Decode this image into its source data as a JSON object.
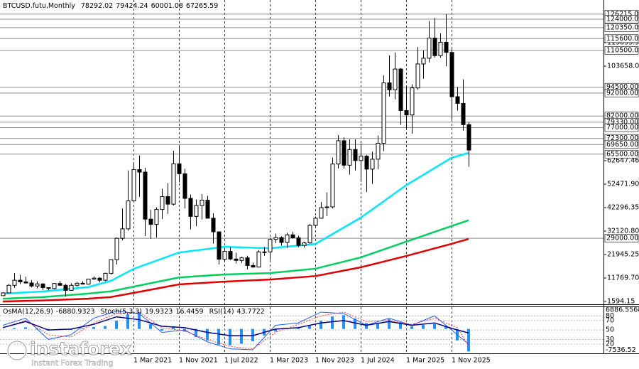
{
  "chart_data": {
    "type": "candlestick",
    "title": "BTCUSD.futu,Monthly",
    "x": [
      "2019-04",
      "2019-05",
      "2019-06",
      "2019-07",
      "2019-08",
      "2019-09",
      "2019-10",
      "2019-11",
      "2019-12",
      "2020-01",
      "2020-02",
      "2020-03",
      "2020-04",
      "2020-05",
      "2020-06",
      "2020-07",
      "2020-08",
      "2020-09",
      "2020-10",
      "2020-11",
      "2020-12",
      "2021-01",
      "2021-02",
      "2021-03",
      "2021-04",
      "2021-05",
      "2021-06",
      "2021-07",
      "2021-08",
      "2021-09",
      "2021-10",
      "2021-11",
      "2021-12",
      "2022-01",
      "2022-02",
      "2022-03",
      "2022-04",
      "2022-05",
      "2022-06",
      "2022-07",
      "2022-08",
      "2022-09",
      "2022-10",
      "2022-11",
      "2022-12",
      "2023-01",
      "2023-02",
      "2023-03",
      "2023-04",
      "2023-05",
      "2023-06",
      "2023-07",
      "2023-08",
      "2023-09",
      "2023-10",
      "2023-11",
      "2023-12",
      "2024-01",
      "2024-02",
      "2024-03",
      "2024-04",
      "2024-05",
      "2024-06",
      "2024-07",
      "2024-08",
      "2024-09",
      "2024-10",
      "2024-11",
      "2024-12",
      "2025-01",
      "2025-02",
      "2025-03",
      "2025-04",
      "2025-05",
      "2025-06",
      "2025-07",
      "2025-08",
      "2025-09",
      "2025-10",
      "2025-11",
      "2025-12",
      "2026-01",
      "2026-02"
    ],
    "open": [
      4100,
      5300,
      8600,
      10800,
      10100,
      9600,
      8300,
      9200,
      7600,
      7200,
      9400,
      8600,
      6400,
      8600,
      9500,
      9100,
      11300,
      11700,
      10800,
      13800,
      19700,
      29000,
      33100,
      45200,
      58800,
      57700,
      37300,
      35000,
      41500,
      47100,
      43800,
      61300,
      57000,
      46300,
      38500,
      43200,
      45500,
      37700,
      31800,
      19900,
      23300,
      20000,
      19400,
      20500,
      17200,
      16500,
      23100,
      23100,
      28500,
      29300,
      27200,
      30500,
      29200,
      25900,
      27000,
      34600,
      37700,
      42300,
      42600,
      61200,
      71300,
      60700,
      67500,
      62700,
      64600,
      59000,
      63300,
      70200,
      96400,
      93400,
      102400,
      84400,
      82500,
      94200,
      104600,
      107100,
      115800,
      108200,
      114000,
      109600,
      90400,
      87500,
      78292.02
    ],
    "high": [
      5600,
      9100,
      13900,
      13200,
      12300,
      10900,
      10400,
      9500,
      7700,
      9600,
      10500,
      9200,
      9500,
      10100,
      10400,
      11400,
      12500,
      12100,
      14100,
      19900,
      29300,
      41900,
      58400,
      61800,
      64900,
      59600,
      41300,
      42400,
      50500,
      52900,
      67000,
      69000,
      59100,
      48000,
      45800,
      48200,
      47400,
      39900,
      31900,
      24600,
      25200,
      22700,
      21000,
      21400,
      18400,
      23900,
      25200,
      29200,
      31000,
      29800,
      31400,
      31800,
      30100,
      27500,
      35200,
      38400,
      44700,
      48900,
      64000,
      73800,
      72700,
      71900,
      71900,
      70000,
      65100,
      66500,
      73600,
      99600,
      108300,
      109600,
      102800,
      95000,
      95800,
      111900,
      110500,
      123200,
      124500,
      117900,
      126200,
      111000,
      94600,
      97900,
      79424.24
    ],
    "low": [
      4000,
      5300,
      7500,
      9100,
      9400,
      7700,
      7300,
      6500,
      6400,
      6900,
      8500,
      3800,
      6200,
      8100,
      8900,
      8900,
      11000,
      9900,
      10400,
      13200,
      17600,
      28100,
      32300,
      45000,
      47000,
      30000,
      28800,
      29300,
      37300,
      39600,
      43300,
      53300,
      42000,
      32900,
      34300,
      37200,
      37700,
      26700,
      17600,
      18800,
      19600,
      18100,
      18200,
      15500,
      16300,
      16500,
      21400,
      19600,
      26900,
      25800,
      24800,
      28900,
      25200,
      24900,
      26600,
      34100,
      37600,
      38600,
      41900,
      59300,
      59200,
      56600,
      58400,
      53500,
      49100,
      52600,
      58900,
      66800,
      90500,
      89300,
      78200,
      76600,
      74400,
      93400,
      98200,
      105300,
      107400,
      107300,
      103600,
      80600,
      84400,
      75700,
      60001.08
    ],
    "close": [
      5300,
      8600,
      10800,
      10100,
      9600,
      8300,
      9200,
      7600,
      7200,
      9400,
      8600,
      6400,
      8600,
      9500,
      9100,
      11300,
      11700,
      10800,
      13800,
      19700,
      29000,
      33100,
      45200,
      58800,
      57700,
      37300,
      35000,
      41500,
      47100,
      43800,
      61300,
      57000,
      46300,
      38500,
      43200,
      45500,
      37700,
      31800,
      19900,
      23300,
      20000,
      19400,
      20500,
      17200,
      16500,
      23100,
      23100,
      28500,
      29300,
      27200,
      30500,
      29200,
      25900,
      27000,
      34600,
      37700,
      42300,
      42600,
      61200,
      71300,
      60700,
      67500,
      62700,
      64600,
      59000,
      63300,
      70200,
      96400,
      93400,
      102400,
      84400,
      82500,
      94200,
      104600,
      107100,
      115800,
      108200,
      114000,
      109600,
      90400,
      87500,
      78292.02,
      67265.59
    ],
    "up_color": "#ffffff",
    "down_color": "#000000",
    "ylim": [
      361,
      132340
    ],
    "yticks": [
      1594.15,
      {
        "value": 11769.7,
        "label": "11769.70"
      },
      21945.25,
      {
        "value": 32120.8,
        "label": "32120.80"
      },
      42296.35,
      {
        "value": 52471.9,
        "label": "52471.90"
      },
      62647.46,
      {
        "value": 103658,
        "label": "103658.00"
      },
      113833.33
    ],
    "levels": [
      {
        "value": 126215,
        "label": "126215.00"
      },
      {
        "value": 124000,
        "label": "124000.00"
      },
      {
        "value": 120350,
        "label": "120350.00"
      },
      {
        "value": 115600,
        "label": "115600.00"
      },
      {
        "value": 110500,
        "label": "110500.00"
      },
      {
        "value": 94500,
        "label": "94500.00"
      },
      {
        "value": 92000,
        "label": "92000.00"
      },
      {
        "value": 82000,
        "label": "82000.00"
      },
      {
        "value": 79330,
        "label": "79330.00"
      },
      {
        "value": 77000,
        "label": "77000.00"
      },
      {
        "value": 72300,
        "label": "72300.00"
      },
      {
        "value": 69650,
        "label": "69650.00"
      },
      {
        "value": 65500,
        "label": "65500.00"
      },
      {
        "value": 29000,
        "label": "29000.00"
      }
    ],
    "level_color": "#8c8c8c",
    "xticks": [
      {
        "value": "2021-03",
        "label": "1 Mar 2021"
      },
      {
        "value": "2021-11",
        "label": "1 Nov 2021"
      },
      {
        "value": "2022-07",
        "label": "1 Jul 2022"
      },
      {
        "value": "2023-03",
        "label": "1 Mar 2023"
      },
      {
        "value": "2023-11",
        "label": "1 Nov 2023"
      },
      {
        "value": "2024-07",
        "label": "1 Jul 2024"
      },
      {
        "value": "2025-03",
        "label": "1 Mar 2025"
      },
      {
        "value": "2025-11",
        "label": "1 Nov 2025"
      }
    ],
    "grid": true,
    "moving_averages": [
      {
        "color": "#00e8ff",
        "x": [
          "2019-04",
          "2019-11",
          "2020-07",
          "2020-11",
          "2021-03",
          "2021-11",
          "2022-07",
          "2023-03",
          "2023-11",
          "2024-07",
          "2025-03",
          "2025-11",
          "2026-02"
        ],
        "values": [
          5000,
          5900,
          7800,
          10500,
          15700,
          22800,
          25300,
          24700,
          26500,
          37900,
          52000,
          63900,
          66000
        ]
      },
      {
        "color": "#00d060",
        "x": [
          "2019-04",
          "2019-11",
          "2020-07",
          "2020-11",
          "2021-03",
          "2021-11",
          "2022-07",
          "2023-03",
          "2023-11",
          "2024-07",
          "2025-03",
          "2025-11",
          "2026-02"
        ],
        "values": [
          2800,
          3500,
          5000,
          6000,
          8000,
          12000,
          13300,
          13900,
          15800,
          20700,
          27500,
          34300,
          36800
        ]
      },
      {
        "color": "#e00000",
        "x": [
          "2019-04",
          "2019-11",
          "2020-07",
          "2020-11",
          "2021-03",
          "2021-11",
          "2022-07",
          "2023-03",
          "2023-11",
          "2024-07",
          "2025-03",
          "2025-11",
          "2026-02"
        ],
        "values": [
          1600,
          2000,
          2800,
          3500,
          5300,
          9000,
          10200,
          11100,
          12600,
          16400,
          21300,
          26600,
          28700
        ]
      }
    ],
    "osma": {
      "name": "OsMA(12,26,9)",
      "color": "#1e90ff",
      "x": [
        "2019-06",
        "2019-08",
        "2019-10",
        "2019-12",
        "2020-02",
        "2020-04",
        "2020-06",
        "2020-08",
        "2020-10",
        "2020-12",
        "2021-02",
        "2021-04",
        "2021-06",
        "2021-08",
        "2021-10",
        "2021-12",
        "2022-02",
        "2022-04",
        "2022-06",
        "2022-08",
        "2022-10",
        "2022-12",
        "2023-02",
        "2023-04",
        "2023-06",
        "2023-08",
        "2023-10",
        "2023-12",
        "2024-02",
        "2024-04",
        "2024-06",
        "2024-08",
        "2024-10",
        "2024-12",
        "2025-02",
        "2025-04",
        "2025-06",
        "2025-08",
        "2025-10",
        "2025-12",
        "2026-02"
      ],
      "values": [
        300,
        500,
        -200,
        -500,
        -200,
        -300,
        200,
        600,
        900,
        2500,
        4500,
        5200,
        1500,
        -500,
        800,
        -800,
        -2500,
        -3500,
        -4800,
        -5000,
        -4500,
        -3800,
        -2000,
        -800,
        200,
        300,
        900,
        2500,
        3800,
        4200,
        3200,
        1800,
        1500,
        3000,
        2000,
        800,
        1200,
        1500,
        800,
        -3500,
        -6880.9323
      ],
      "ylim": [
        -7536.52,
        6886.5568
      ],
      "yticks": [
        6886.5568,
        -7536.52
      ]
    },
    "oscillators": {
      "x": [
        "2019-04",
        "2019-08",
        "2019-12",
        "2020-04",
        "2020-08",
        "2020-12",
        "2021-04",
        "2021-08",
        "2021-12",
        "2022-04",
        "2022-08",
        "2022-12",
        "2023-04",
        "2023-08",
        "2023-12",
        "2024-04",
        "2024-08",
        "2024-12",
        "2025-04",
        "2025-08",
        "2025-12",
        "2026-02"
      ],
      "ylim": [
        0,
        100
      ],
      "yticks": [
        80,
        70,
        50,
        30,
        20
      ],
      "stoch": {
        "name": "Stoch(5,3,3)",
        "color": "#1e60ff",
        "values": [
          60,
          75,
          30,
          40,
          75,
          90,
          85,
          45,
          50,
          25,
          10,
          8,
          60,
          65,
          88,
          85,
          60,
          75,
          60,
          80,
          40,
          19.9323
        ],
        "signal_color": "#ff3030",
        "signal": [
          55,
          70,
          40,
          35,
          65,
          85,
          88,
          55,
          48,
          30,
          15,
          10,
          45,
          62,
          80,
          88,
          68,
          70,
          62,
          75,
          55,
          16.4459
        ]
      },
      "rsi": {
        "name": "RSI(14)",
        "color": "#000080",
        "values": [
          55,
          68,
          50,
          52,
          62,
          78,
          72,
          58,
          55,
          45,
          38,
          38,
          52,
          55,
          65,
          70,
          60,
          68,
          60,
          65,
          50,
          43.7722
        ]
      }
    },
    "watermark": {
      "brand": "instaforex",
      "tagline": "Instant Forex Trading"
    }
  }
}
